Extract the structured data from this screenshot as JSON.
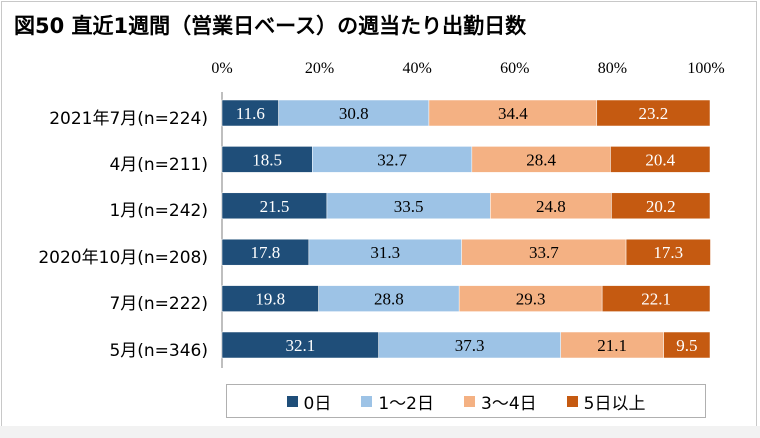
{
  "chart_data": {
    "type": "bar",
    "orientation": "horizontal",
    "stacked": "percent",
    "title": "図50 直近1週間（営業日ベース）の週当たり出勤日数",
    "categories": [
      "2021年7月(n=224)",
      "4月(n=211)",
      "1月(n=242)",
      "2020年10月(n=208)",
      "7月(n=222)",
      "5月(n=346)"
    ],
    "xlim": [
      0,
      100
    ],
    "x_ticks": [
      "0%",
      "20%",
      "40%",
      "60%",
      "80%",
      "100%"
    ],
    "legend_position": "bottom",
    "grid": false,
    "series": [
      {
        "name": "0日",
        "color": "#1f4e79",
        "label_color": "#ffffff",
        "values": [
          11.6,
          18.5,
          21.5,
          17.8,
          19.8,
          32.1
        ]
      },
      {
        "name": "1～2日",
        "color": "#9dc3e6",
        "label_color": "#000000",
        "values": [
          30.8,
          32.7,
          33.5,
          31.3,
          28.8,
          37.3
        ]
      },
      {
        "name": "3～4日",
        "color": "#f4b183",
        "label_color": "#000000",
        "values": [
          34.4,
          28.4,
          24.8,
          33.7,
          29.3,
          21.1
        ]
      },
      {
        "name": "5日以上",
        "color": "#c55a11",
        "label_color": "#ffffff",
        "values": [
          23.2,
          20.4,
          20.2,
          17.3,
          22.1,
          9.5
        ]
      }
    ]
  }
}
